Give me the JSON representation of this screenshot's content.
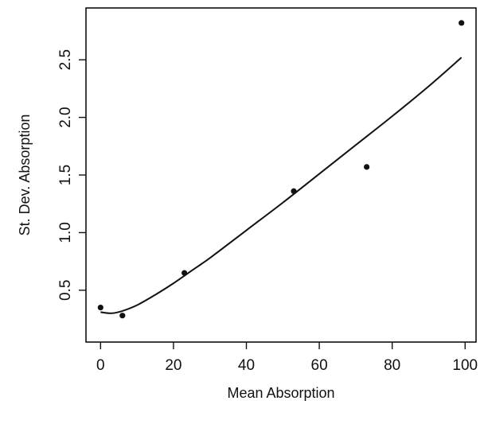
{
  "chart_data": {
    "type": "scatter",
    "title": "",
    "xlabel": "Mean Absorption",
    "ylabel": "St. Dev. Absorption",
    "xlim": [
      -4,
      103
    ],
    "ylim": [
      0.05,
      2.95
    ],
    "xticks": [
      0,
      20,
      40,
      60,
      80,
      100
    ],
    "xtick_labels": [
      "0",
      "20",
      "40",
      "60",
      "80",
      "100"
    ],
    "yticks": [
      0.5,
      1.0,
      1.5,
      2.0,
      2.5
    ],
    "ytick_labels": [
      "0.5",
      "1.0",
      "1.5",
      "2.0",
      "2.5"
    ],
    "grid": false,
    "legend": "none",
    "series": [
      {
        "kind": "points",
        "x": [
          0,
          6,
          23,
          53,
          73,
          99
        ],
        "y": [
          0.35,
          0.28,
          0.65,
          1.36,
          1.57,
          2.82
        ]
      },
      {
        "kind": "fitted-curve",
        "x": [
          0,
          3,
          6,
          10,
          15,
          20,
          25,
          30,
          40,
          50,
          60,
          70,
          80,
          90,
          99
        ],
        "y": [
          0.31,
          0.3,
          0.32,
          0.37,
          0.46,
          0.56,
          0.67,
          0.78,
          1.02,
          1.26,
          1.51,
          1.76,
          2.01,
          2.27,
          2.52
        ]
      }
    ],
    "colors": {
      "marker": "#111111",
      "line": "#111111",
      "axis": "#111111"
    }
  }
}
